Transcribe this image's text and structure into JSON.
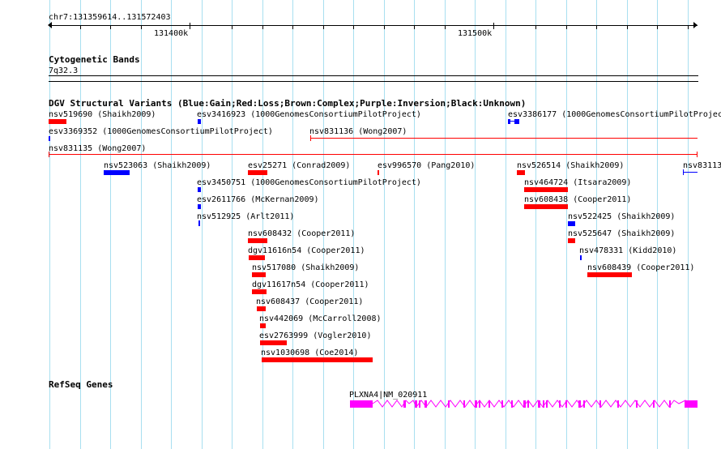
{
  "ruler": {
    "range_label": "chr7:131359614..131572403",
    "ticks": [
      "131400k",
      "131500k"
    ]
  },
  "cytobands": {
    "title": "Cytogenetic Bands",
    "band": "7q32.3"
  },
  "dgv": {
    "title": "DGV Structural Variants (Blue:Gain;Red:Loss;Brown:Complex;Purple:Inversion;Black:Unknown)",
    "colors": {
      "gain": "#0000ff",
      "loss": "#ff0000"
    },
    "variants": [
      {
        "label": "nsv519690 (Shaikh2009)",
        "type": "loss"
      },
      {
        "label": "esv3416923 (1000GenomesConsortiumPilotProject)",
        "type": "gain"
      },
      {
        "label": "esv3386177 (1000GenomesConsortiumPilotProject)",
        "type": "gain"
      },
      {
        "label": "esv3369352 (1000GenomesConsortiumPilotProject)",
        "type": "gain"
      },
      {
        "label": "nsv831136 (Wong2007)",
        "type": "loss"
      },
      {
        "label": "nsv831135 (Wong2007)",
        "type": "loss"
      },
      {
        "label": "nsv523063 (Shaikh2009)",
        "type": "gain"
      },
      {
        "label": "esv25271 (Conrad2009)",
        "type": "loss"
      },
      {
        "label": "esv996570 (Pang2010)",
        "type": "loss"
      },
      {
        "label": "nsv526514 (Shaikh2009)",
        "type": "loss"
      },
      {
        "label": "nsv83113",
        "type": "gain"
      },
      {
        "label": "esv3450751 (1000GenomesConsortiumPilotProject)",
        "type": "gain"
      },
      {
        "label": "nsv464724 (Itsara2009)",
        "type": "loss"
      },
      {
        "label": "esv2611766 (McKernan2009)",
        "type": "gain"
      },
      {
        "label": "nsv608438 (Cooper2011)",
        "type": "loss"
      },
      {
        "label": "nsv512925 (Arlt2011)",
        "type": "gain"
      },
      {
        "label": "nsv522425 (Shaikh2009)",
        "type": "gain"
      },
      {
        "label": "nsv608432 (Cooper2011)",
        "type": "loss"
      },
      {
        "label": "nsv525647 (Shaikh2009)",
        "type": "loss"
      },
      {
        "label": "dgv11616n54 (Cooper2011)",
        "type": "loss"
      },
      {
        "label": "nsv478331 (Kidd2010)",
        "type": "gain"
      },
      {
        "label": "nsv517080 (Shaikh2009)",
        "type": "loss"
      },
      {
        "label": "nsv608439 (Cooper2011)",
        "type": "loss"
      },
      {
        "label": "dgv11617n54 (Cooper2011)",
        "type": "loss"
      },
      {
        "label": "nsv608437 (Cooper2011)",
        "type": "loss"
      },
      {
        "label": "nsv442069 (McCarroll2008)",
        "type": "loss"
      },
      {
        "label": "esv2763999 (Vogler2010)",
        "type": "loss"
      },
      {
        "label": "nsv1030698 (Coe2014)",
        "type": "loss"
      }
    ]
  },
  "refseq": {
    "title": "RefSeq Genes",
    "color": "#ff00ff",
    "gene_label": "PLXNA4|NM_020911"
  }
}
